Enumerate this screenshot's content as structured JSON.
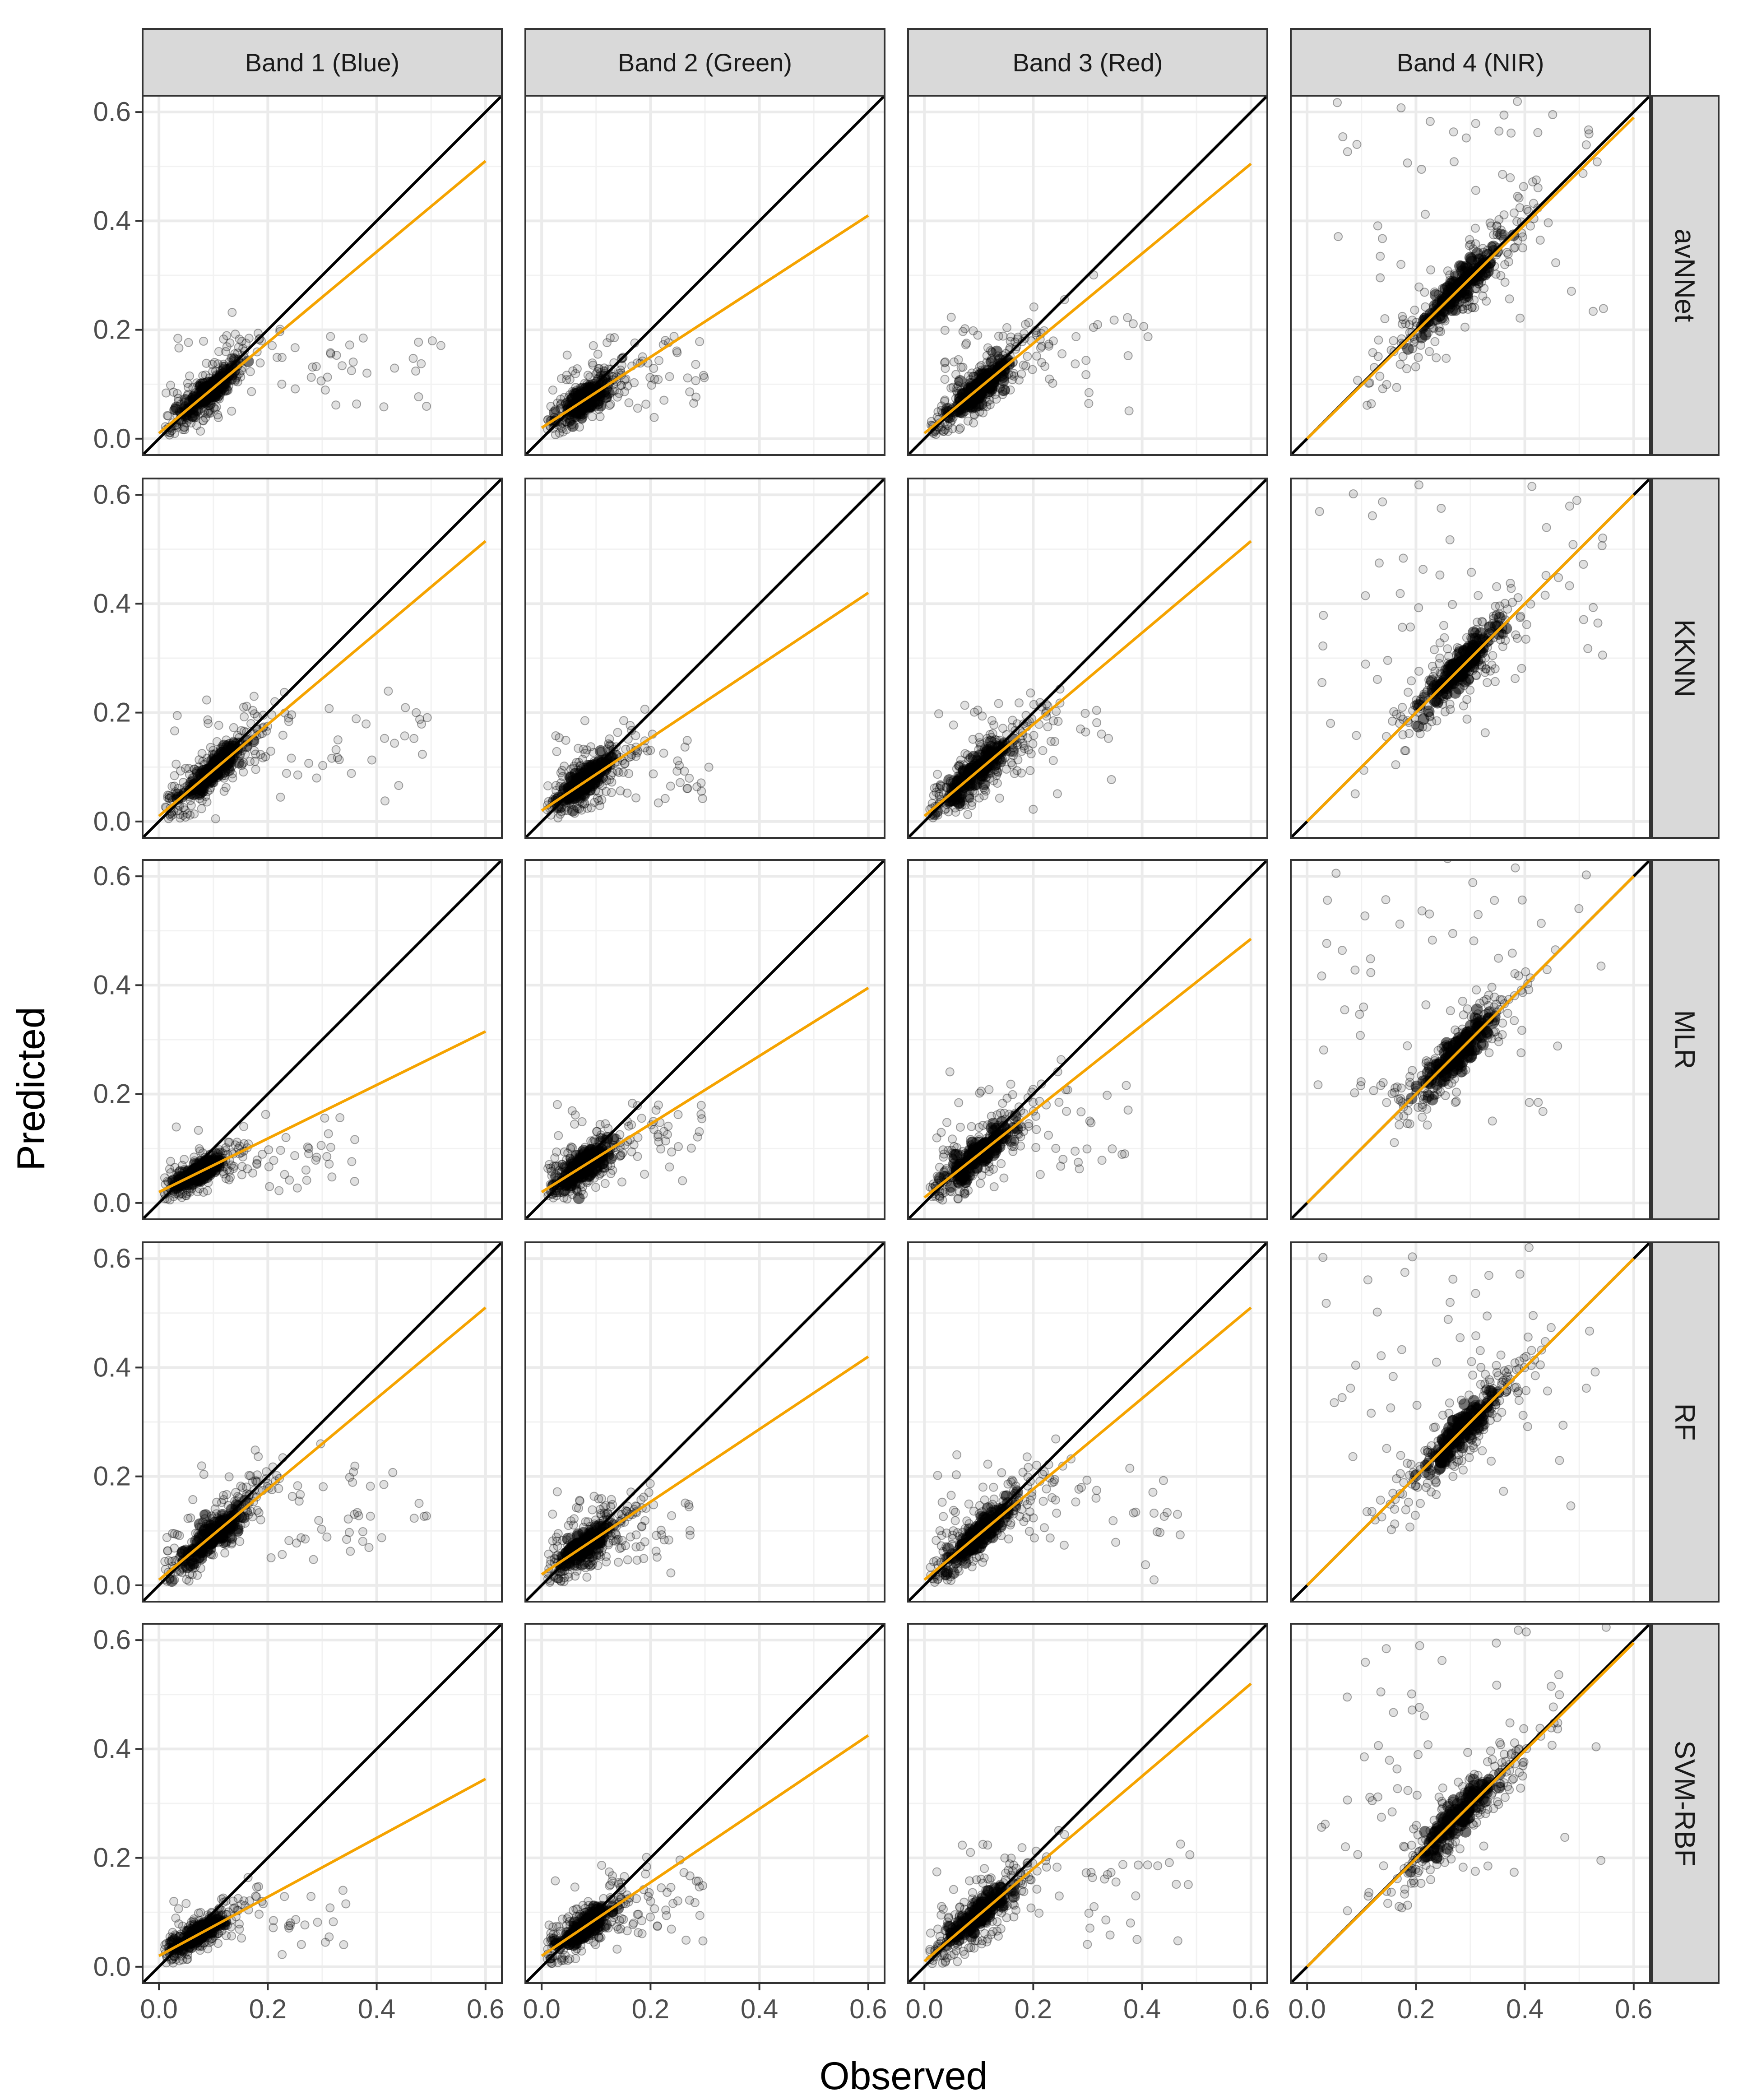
{
  "chart_data": {
    "type": "scatter",
    "title": "",
    "xlabel": "Observed",
    "ylabel": "Predicted",
    "xlim": [
      -0.03,
      0.63
    ],
    "ylim": [
      -0.03,
      0.63
    ],
    "x_ticks": [
      0.0,
      0.2,
      0.4,
      0.6
    ],
    "y_ticks": [
      0.0,
      0.2,
      0.4,
      0.6
    ],
    "x_tick_labels": [
      "0.0",
      "0.2",
      "0.4",
      "0.6"
    ],
    "y_tick_labels": [
      "0.0",
      "0.2",
      "0.4",
      "0.6"
    ],
    "grid": true,
    "reference_line": {
      "name": "1:1 line",
      "slope": 1,
      "intercept": 0,
      "color": "#000000"
    },
    "fit_color": "#f5a300",
    "point_color": "#000000",
    "columns": [
      "Band 1 (Blue)",
      "Band 2 (Green)",
      "Band 3 (Red)",
      "Band 4 (NIR)"
    ],
    "rows": [
      "avNNet",
      "KKNN",
      "MLR",
      "RF",
      "SVM-RBF"
    ],
    "panels": [
      [
        {
          "fit": {
            "x": [
              0.0,
              0.6
            ],
            "y": [
              0.01,
              0.51
            ]
          },
          "cloud": {
            "cx": 0.09,
            "cy": 0.09,
            "sx": 0.05,
            "sy": 0.045,
            "xmax": 0.52
          }
        },
        {
          "fit": {
            "x": [
              0.0,
              0.6
            ],
            "y": [
              0.02,
              0.41
            ]
          },
          "cloud": {
            "cx": 0.08,
            "cy": 0.08,
            "sx": 0.045,
            "sy": 0.04,
            "xmax": 0.31
          }
        },
        {
          "fit": {
            "x": [
              0.0,
              0.6
            ],
            "y": [
              0.01,
              0.505
            ]
          },
          "cloud": {
            "cx": 0.1,
            "cy": 0.1,
            "sx": 0.06,
            "sy": 0.05,
            "xmax": 0.42
          }
        },
        {
          "fit": {
            "x": [
              0.0,
              0.6
            ],
            "y": [
              0.0,
              0.59
            ]
          },
          "cloud": {
            "cx": 0.28,
            "cy": 0.28,
            "sx": 0.07,
            "sy": 0.06,
            "xmax": 0.55
          }
        }
      ],
      [
        {
          "fit": {
            "x": [
              0.0,
              0.6
            ],
            "y": [
              0.01,
              0.515
            ]
          },
          "cloud": {
            "cx": 0.1,
            "cy": 0.1,
            "sx": 0.055,
            "sy": 0.05,
            "xmax": 0.5
          }
        },
        {
          "fit": {
            "x": [
              0.0,
              0.6
            ],
            "y": [
              0.02,
              0.42
            ]
          },
          "cloud": {
            "cx": 0.08,
            "cy": 0.08,
            "sx": 0.045,
            "sy": 0.045,
            "xmax": 0.31
          }
        },
        {
          "fit": {
            "x": [
              0.0,
              0.6
            ],
            "y": [
              0.01,
              0.515
            ]
          },
          "cloud": {
            "cx": 0.1,
            "cy": 0.1,
            "sx": 0.06,
            "sy": 0.05,
            "xmax": 0.35
          }
        },
        {
          "fit": {
            "x": [
              0.0,
              0.6
            ],
            "y": [
              0.0,
              0.6
            ]
          },
          "cloud": {
            "cx": 0.28,
            "cy": 0.28,
            "sx": 0.07,
            "sy": 0.06,
            "xmax": 0.55
          }
        }
      ],
      [
        {
          "fit": {
            "x": [
              0.0,
              0.6
            ],
            "y": [
              0.02,
              0.315
            ]
          },
          "cloud": {
            "cx": 0.07,
            "cy": 0.06,
            "sx": 0.04,
            "sy": 0.03,
            "xmax": 0.36
          }
        },
        {
          "fit": {
            "x": [
              0.0,
              0.6
            ],
            "y": [
              0.02,
              0.395
            ]
          },
          "cloud": {
            "cx": 0.08,
            "cy": 0.08,
            "sx": 0.045,
            "sy": 0.045,
            "xmax": 0.3
          }
        },
        {
          "fit": {
            "x": [
              0.0,
              0.6
            ],
            "y": [
              0.01,
              0.485
            ]
          },
          "cloud": {
            "cx": 0.1,
            "cy": 0.1,
            "sx": 0.06,
            "sy": 0.05,
            "xmax": 0.4
          }
        },
        {
          "fit": {
            "x": [
              0.0,
              0.6
            ],
            "y": [
              0.0,
              0.6
            ]
          },
          "cloud": {
            "cx": 0.28,
            "cy": 0.28,
            "sx": 0.07,
            "sy": 0.06,
            "xmax": 0.55
          }
        }
      ],
      [
        {
          "fit": {
            "x": [
              0.0,
              0.6
            ],
            "y": [
              0.01,
              0.51
            ]
          },
          "cloud": {
            "cx": 0.1,
            "cy": 0.1,
            "sx": 0.055,
            "sy": 0.05,
            "xmax": 0.5
          }
        },
        {
          "fit": {
            "x": [
              0.0,
              0.6
            ],
            "y": [
              0.02,
              0.42
            ]
          },
          "cloud": {
            "cx": 0.08,
            "cy": 0.08,
            "sx": 0.045,
            "sy": 0.045,
            "xmax": 0.3
          }
        },
        {
          "fit": {
            "x": [
              0.0,
              0.6
            ],
            "y": [
              0.01,
              0.51
            ]
          },
          "cloud": {
            "cx": 0.1,
            "cy": 0.1,
            "sx": 0.06,
            "sy": 0.05,
            "xmax": 0.47
          }
        },
        {
          "fit": {
            "x": [
              0.0,
              0.6
            ],
            "y": [
              0.0,
              0.6
            ]
          },
          "cloud": {
            "cx": 0.28,
            "cy": 0.28,
            "sx": 0.07,
            "sy": 0.06,
            "xmax": 0.55
          }
        }
      ],
      [
        {
          "fit": {
            "x": [
              0.0,
              0.6
            ],
            "y": [
              0.02,
              0.345
            ]
          },
          "cloud": {
            "cx": 0.07,
            "cy": 0.06,
            "sx": 0.04,
            "sy": 0.03,
            "xmax": 0.35
          }
        },
        {
          "fit": {
            "x": [
              0.0,
              0.6
            ],
            "y": [
              0.02,
              0.425
            ]
          },
          "cloud": {
            "cx": 0.08,
            "cy": 0.08,
            "sx": 0.045,
            "sy": 0.045,
            "xmax": 0.3
          }
        },
        {
          "fit": {
            "x": [
              0.0,
              0.6
            ],
            "y": [
              0.01,
              0.52
            ]
          },
          "cloud": {
            "cx": 0.1,
            "cy": 0.1,
            "sx": 0.06,
            "sy": 0.05,
            "xmax": 0.49
          }
        },
        {
          "fit": {
            "x": [
              0.0,
              0.6
            ],
            "y": [
              0.0,
              0.595
            ]
          },
          "cloud": {
            "cx": 0.28,
            "cy": 0.28,
            "sx": 0.07,
            "sy": 0.06,
            "xmax": 0.55
          }
        }
      ]
    ]
  }
}
